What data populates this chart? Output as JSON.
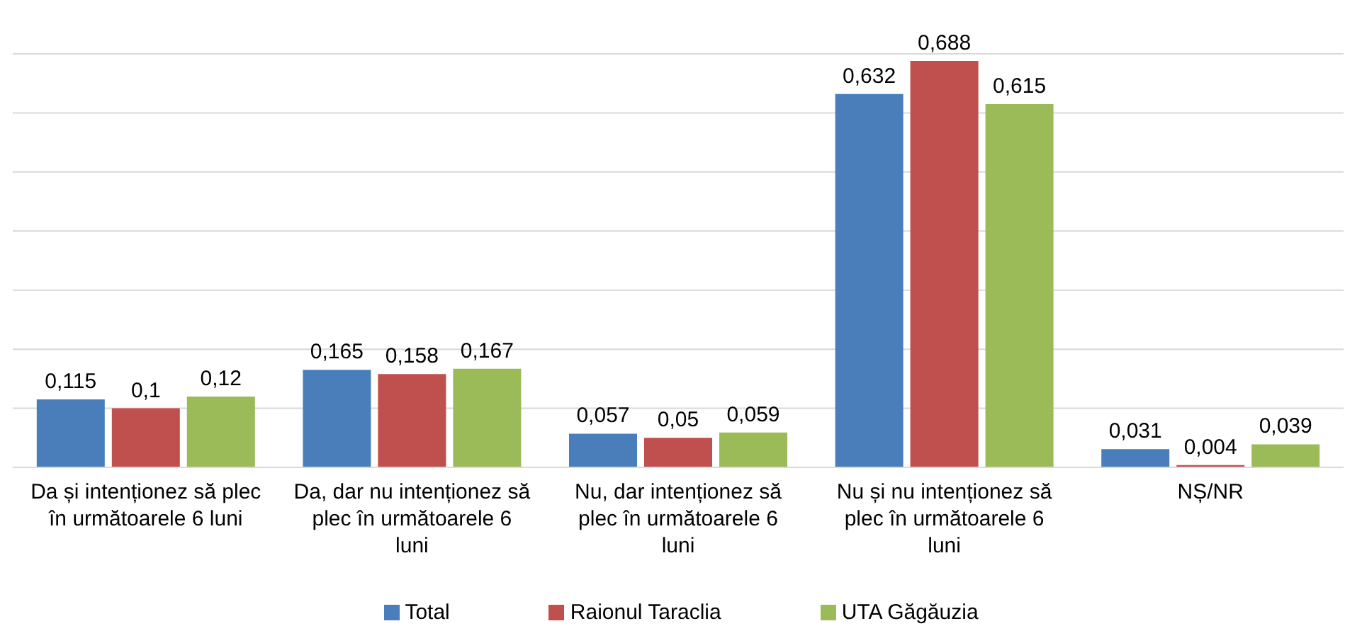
{
  "chart_data": {
    "type": "bar",
    "categories": [
      "Da și intenționez să plec în următoarele 6 luni",
      "Da, dar nu intenționez să plec în următoarele 6 luni",
      "Nu, dar intenționez să plec în următoarele 6 luni",
      "Nu și nu intenționez să plec în următoarele 6 luni",
      "NȘ/NR"
    ],
    "series": [
      {
        "name": "Total",
        "color": "#4a7ebb",
        "values": [
          0.115,
          0.165,
          0.057,
          0.632,
          0.031
        ],
        "value_labels": [
          "0,115",
          "0,165",
          "0,057",
          "0,632",
          "0,031"
        ]
      },
      {
        "name": "Raionul Taraclia",
        "color": "#c0504d",
        "values": [
          0.1,
          0.158,
          0.05,
          0.688,
          0.004
        ],
        "value_labels": [
          "0,1",
          "0,158",
          "0,05",
          "0,688",
          "0,004"
        ]
      },
      {
        "name": "UTA Găgăuzia",
        "color": "#9bbb59",
        "values": [
          0.12,
          0.167,
          0.059,
          0.615,
          0.039
        ],
        "value_labels": [
          "0,12",
          "0,167",
          "0,059",
          "0,615",
          "0,039"
        ]
      }
    ],
    "tick_labels": "x",
    "grid": "y",
    "legend": "bottom"
  }
}
